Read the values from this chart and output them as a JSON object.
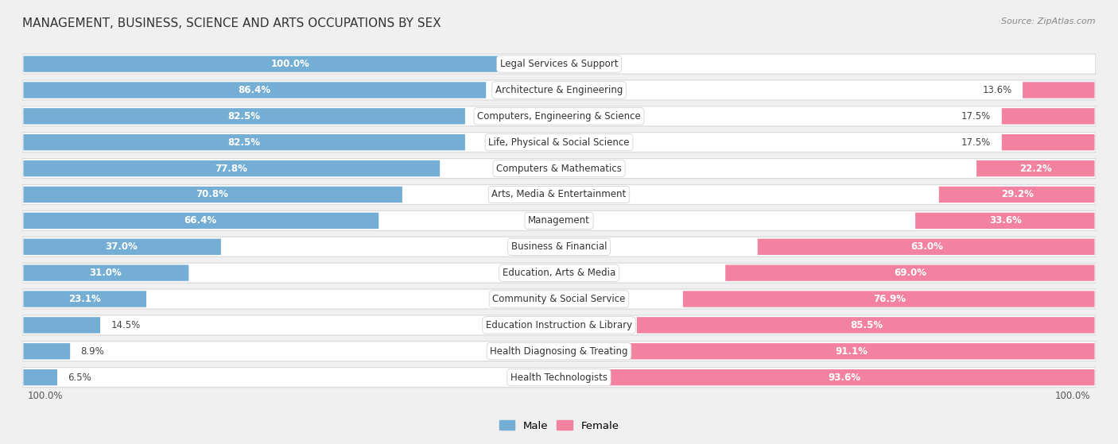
{
  "title": "MANAGEMENT, BUSINESS, SCIENCE AND ARTS OCCUPATIONS BY SEX",
  "source": "Source: ZipAtlas.com",
  "categories": [
    "Legal Services & Support",
    "Architecture & Engineering",
    "Computers, Engineering & Science",
    "Life, Physical & Social Science",
    "Computers & Mathematics",
    "Arts, Media & Entertainment",
    "Management",
    "Business & Financial",
    "Education, Arts & Media",
    "Community & Social Service",
    "Education Instruction & Library",
    "Health Diagnosing & Treating",
    "Health Technologists"
  ],
  "male_pct": [
    100.0,
    86.4,
    82.5,
    82.5,
    77.8,
    70.8,
    66.4,
    37.0,
    31.0,
    23.1,
    14.5,
    8.9,
    6.5
  ],
  "female_pct": [
    0.0,
    13.6,
    17.5,
    17.5,
    22.2,
    29.2,
    33.6,
    63.0,
    69.0,
    76.9,
    85.5,
    91.1,
    93.6
  ],
  "male_color": "#74aed4",
  "female_color": "#f282a0",
  "bg_color": "#f0f0f0",
  "row_bg_color": "#ffffff",
  "row_edge_color": "#d8d8d8",
  "bar_height": 0.62,
  "title_fontsize": 11,
  "label_fontsize": 8.5,
  "pct_fontsize": 8.5,
  "source_fontsize": 8
}
